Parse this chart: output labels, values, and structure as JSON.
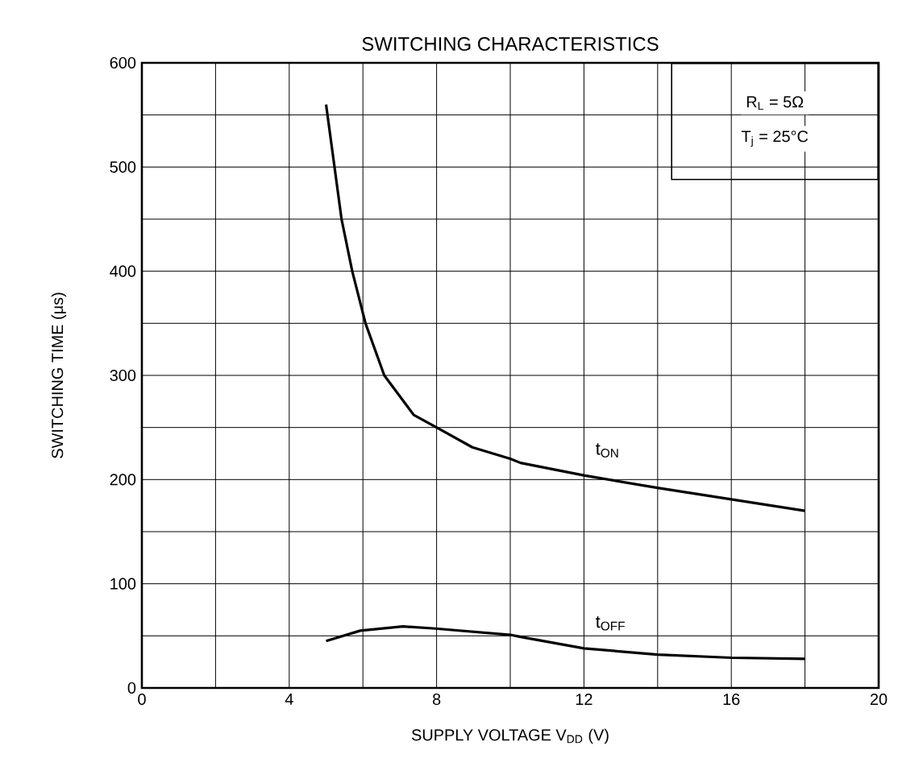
{
  "chart_data": {
    "type": "line",
    "title": "SWITCHING CHARACTERISTICS",
    "xlabel": "SUPPLY VOLTAGE   V$_{DD}$   (V)",
    "ylabel": "SWITCHING TIME   (μs)",
    "annotations": [
      "R$_{L}$ = 5Ω",
      "T$_{j}$ = 25°C"
    ],
    "xlim": [
      0,
      20
    ],
    "ylim": [
      0,
      600
    ],
    "xticks": [
      0,
      {
        "value": 2,
        "label": null
      },
      4,
      {
        "value": 6,
        "label": null
      },
      8,
      {
        "value": 10,
        "label": null
      },
      12,
      {
        "value": 14,
        "label": null
      },
      16,
      {
        "value": 18,
        "label": null
      },
      20
    ],
    "yticks": [
      0,
      {
        "value": 50,
        "label": null
      },
      100,
      {
        "value": 150,
        "label": null
      },
      200,
      {
        "value": 250,
        "label": null
      },
      300,
      {
        "value": 350,
        "label": null
      },
      400,
      {
        "value": 450,
        "label": null
      },
      500,
      {
        "value": 550,
        "label": null
      },
      600
    ],
    "grid": true,
    "series": [
      {
        "name": "t$_{ON}$",
        "color": "#000000",
        "x": [
          5.0,
          5.42,
          5.71,
          6.07,
          6.58,
          7.38,
          8.0,
          8.97,
          10.0,
          10.28,
          12.0,
          14.0,
          16.0,
          18.0
        ],
        "values": [
          560,
          450,
          400,
          350,
          300,
          262,
          250,
          231,
          220,
          216,
          204,
          192,
          181,
          170
        ]
      },
      {
        "name": "t$_{OFF}$",
        "color": "#000000",
        "x": [
          5.0,
          5.93,
          7.09,
          7.96,
          10.0,
          10.28,
          12.0,
          14.0,
          16.0,
          18.0
        ],
        "values": [
          45,
          55,
          59,
          57,
          51,
          49,
          38,
          32,
          29,
          28
        ]
      }
    ]
  }
}
